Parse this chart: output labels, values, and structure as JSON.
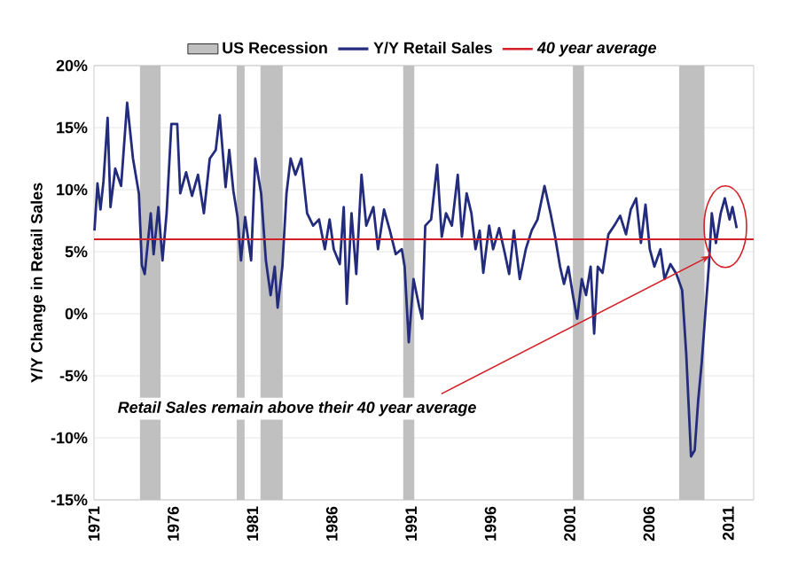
{
  "chart_data": {
    "type": "line",
    "ylabel": "Y/Y Change in Retail Sales",
    "x": [
      1971.03,
      1971.22,
      1971.41,
      1971.6,
      1971.86,
      1972.04,
      1972.34,
      1972.71,
      1973.09,
      1973.46,
      1973.83,
      1974.02,
      1974.2,
      1974.58,
      1974.76,
      1975.06,
      1975.32,
      1975.58,
      1975.88,
      1976.25,
      1976.44,
      1976.81,
      1977.18,
      1977.56,
      1977.93,
      1978.3,
      1978.68,
      1978.93,
      1979.3,
      1979.53,
      1979.79,
      1980.05,
      1980.27,
      1980.53,
      1980.91,
      1981.17,
      1981.54,
      1981.84,
      1982.14,
      1982.4,
      1982.58,
      1982.88,
      1983.14,
      1983.4,
      1983.7,
      1984.07,
      1984.44,
      1984.82,
      1985.19,
      1985.56,
      1985.86,
      1986.12,
      1986.5,
      1986.75,
      1986.94,
      1987.24,
      1987.54,
      1987.87,
      1988.17,
      1988.62,
      1988.91,
      1989.29,
      1989.66,
      1990.03,
      1990.41,
      1990.59,
      1990.85,
      1991.15,
      1991.52,
      1991.7,
      1991.89,
      1992.26,
      1992.64,
      1992.93,
      1993.2,
      1993.57,
      1993.94,
      1994.2,
      1994.5,
      1994.8,
      1995.06,
      1995.32,
      1995.55,
      1995.92,
      1996.17,
      1996.55,
      1996.92,
      1997.18,
      1997.48,
      1997.85,
      1998.23,
      1998.6,
      1998.97,
      1999.41,
      1999.79,
      2000.08,
      2000.39,
      2000.64,
      2000.91,
      2001.2,
      2001.47,
      2001.76,
      2002.03,
      2002.32,
      2002.54,
      2002.77,
      2003.07,
      2003.44,
      2003.81,
      2004.18,
      2004.55,
      2004.85,
      2005.19,
      2005.49,
      2005.78,
      2006.05,
      2006.34,
      2006.72,
      2006.98,
      2007.35,
      2007.73,
      2008.09,
      2008.35,
      2008.65,
      2008.88,
      2009.1,
      2009.32,
      2009.55,
      2009.77,
      2009.96,
      2010.22,
      2010.52,
      2010.78,
      2011.08,
      2011.26,
      2011.53
    ],
    "series": [
      {
        "name": "Y/Y Retail Sales",
        "color": "#232c7c",
        "values": [
          6.7,
          10.5,
          8.4,
          10.7,
          15.8,
          8.6,
          11.7,
          10.3,
          17,
          12.5,
          9.7,
          3.9,
          3.2,
          8.1,
          4.8,
          8.6,
          4.3,
          8.1,
          15.3,
          15.3,
          9.7,
          11.4,
          9.5,
          11.2,
          8.1,
          12.5,
          13.2,
          16,
          10.2,
          13.2,
          9.9,
          7.8,
          4.3,
          7.8,
          4.3,
          12.5,
          9.7,
          4.3,
          1.5,
          3.8,
          0.5,
          3.8,
          9.7,
          12.5,
          11.2,
          12.5,
          8.1,
          7.1,
          7.6,
          5.2,
          7.6,
          5.2,
          4,
          8.6,
          0.8,
          8.1,
          3.2,
          11.2,
          7.1,
          8.6,
          5.2,
          8.4,
          6.7,
          4.8,
          5.2,
          3.8,
          -2.3,
          2.8,
          0.5,
          -0.4,
          7.1,
          7.6,
          12,
          6.2,
          8.1,
          7.1,
          11.2,
          6.2,
          9.7,
          8.1,
          5.2,
          6.7,
          3.3,
          7.1,
          5.2,
          6.9,
          4.8,
          3.2,
          6.7,
          2.8,
          5.2,
          6.7,
          7.6,
          10.3,
          8.1,
          6.2,
          3.8,
          2.4,
          3.8,
          1.5,
          -0.4,
          2.8,
          1.5,
          3.8,
          -1.6,
          3.8,
          3.3,
          6.4,
          7.1,
          7.9,
          6.4,
          8.4,
          9.3,
          5.7,
          8.8,
          5.2,
          3.8,
          5.2,
          2.8,
          4,
          3.2,
          1.9,
          -3.3,
          -11.5,
          -11,
          -7,
          -4,
          0,
          3.8,
          8.1,
          5.7,
          8.1,
          9.3,
          7.6,
          8.6,
          6.9
        ]
      }
    ],
    "xlim": [
      1971,
      2012.6
    ],
    "xticks": [
      1971,
      1976,
      1981,
      1986,
      1991,
      1996,
      2001,
      2006,
      2011
    ],
    "ylim": [
      -15,
      20
    ],
    "yticks": [
      {
        "value": -15,
        "label": "-15%"
      },
      {
        "value": -10,
        "label": "-10%"
      },
      {
        "value": -5,
        "label": "-5%"
      },
      {
        "value": 0,
        "label": "0%"
      },
      {
        "value": 5,
        "label": "5%"
      },
      {
        "value": 10,
        "label": "10%"
      },
      {
        "value": 15,
        "label": "15%"
      },
      {
        "value": 20,
        "label": "20%"
      }
    ],
    "grid": "y",
    "legend": "top",
    "ref_lines": [
      {
        "axis": "y",
        "value": 6,
        "label": "40 year average",
        "color": "#d42027"
      }
    ],
    "bands": [
      {
        "axis": "x",
        "from": 1973.9,
        "to": 1975.2,
        "label": "US Recession",
        "color": "#c0c0c0"
      },
      {
        "axis": "x",
        "from": 1980.0,
        "to": 1980.5,
        "color": "#c0c0c0"
      },
      {
        "axis": "x",
        "from": 1981.5,
        "to": 1982.9,
        "color": "#c0c0c0"
      },
      {
        "axis": "x",
        "from": 1990.5,
        "to": 1991.2,
        "color": "#c0c0c0"
      },
      {
        "axis": "x",
        "from": 2001.2,
        "to": 2001.9,
        "color": "#c0c0c0"
      },
      {
        "axis": "x",
        "from": 2007.9,
        "to": 2009.5,
        "color": "#c0c0c0"
      }
    ],
    "annotations": [
      "Retail Sales remain above their 40 year average"
    ]
  }
}
